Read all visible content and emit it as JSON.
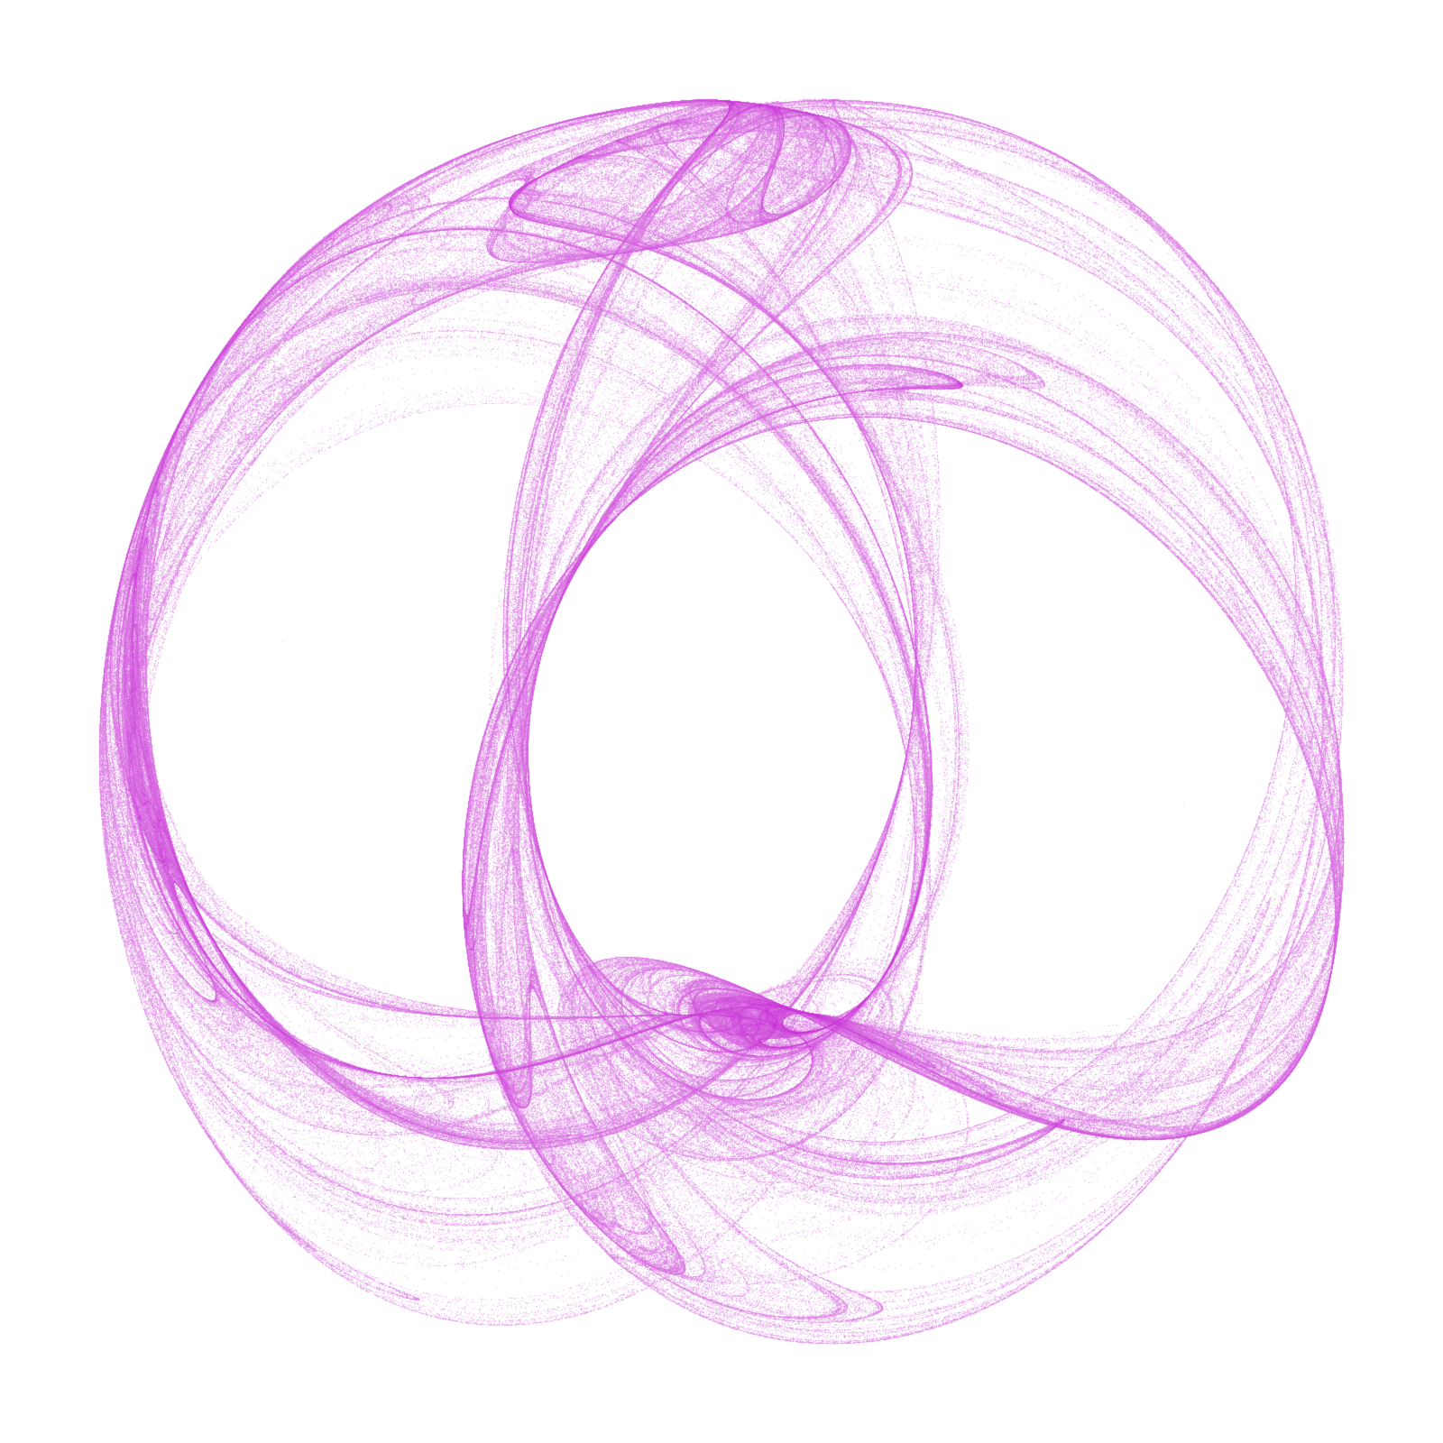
{
  "artwork": {
    "kind": "strange-attractor-density-render",
    "background_color": "#ffffff",
    "ink_color": "#c832d6"
  }
}
